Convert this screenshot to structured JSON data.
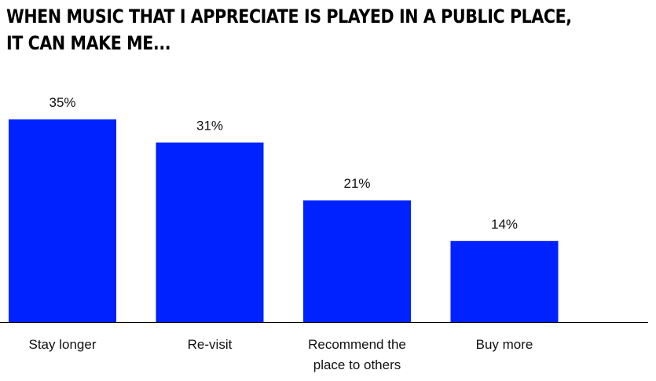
{
  "title_lines": [
    "WHEN MUSIC THAT I APPRECIATE IS PLAYED IN A PUBLIC PLACE,",
    "IT CAN MAKE ME..."
  ],
  "colors": {
    "bar": "#0022FF",
    "text": "#111111",
    "axis": "#000000"
  },
  "chart_data": {
    "type": "bar",
    "title": "WHEN MUSIC THAT I APPRECIATE IS PLAYED IN A PUBLIC PLACE, IT CAN MAKE ME...",
    "categories": [
      "Stay longer",
      "Re-visit",
      "Recommend the place to others",
      "Buy more"
    ],
    "category_lines": [
      [
        "Stay longer"
      ],
      [
        "Re-visit"
      ],
      [
        "Recommend the",
        "place to others"
      ],
      [
        "Buy more"
      ]
    ],
    "values": [
      35,
      31,
      21,
      14
    ],
    "value_labels": [
      "35%",
      "31%",
      "21%",
      "14%"
    ],
    "unit": "%",
    "xlabel": "",
    "ylabel": "",
    "ylim": [
      0,
      35
    ],
    "grid": false,
    "legend": "none"
  }
}
